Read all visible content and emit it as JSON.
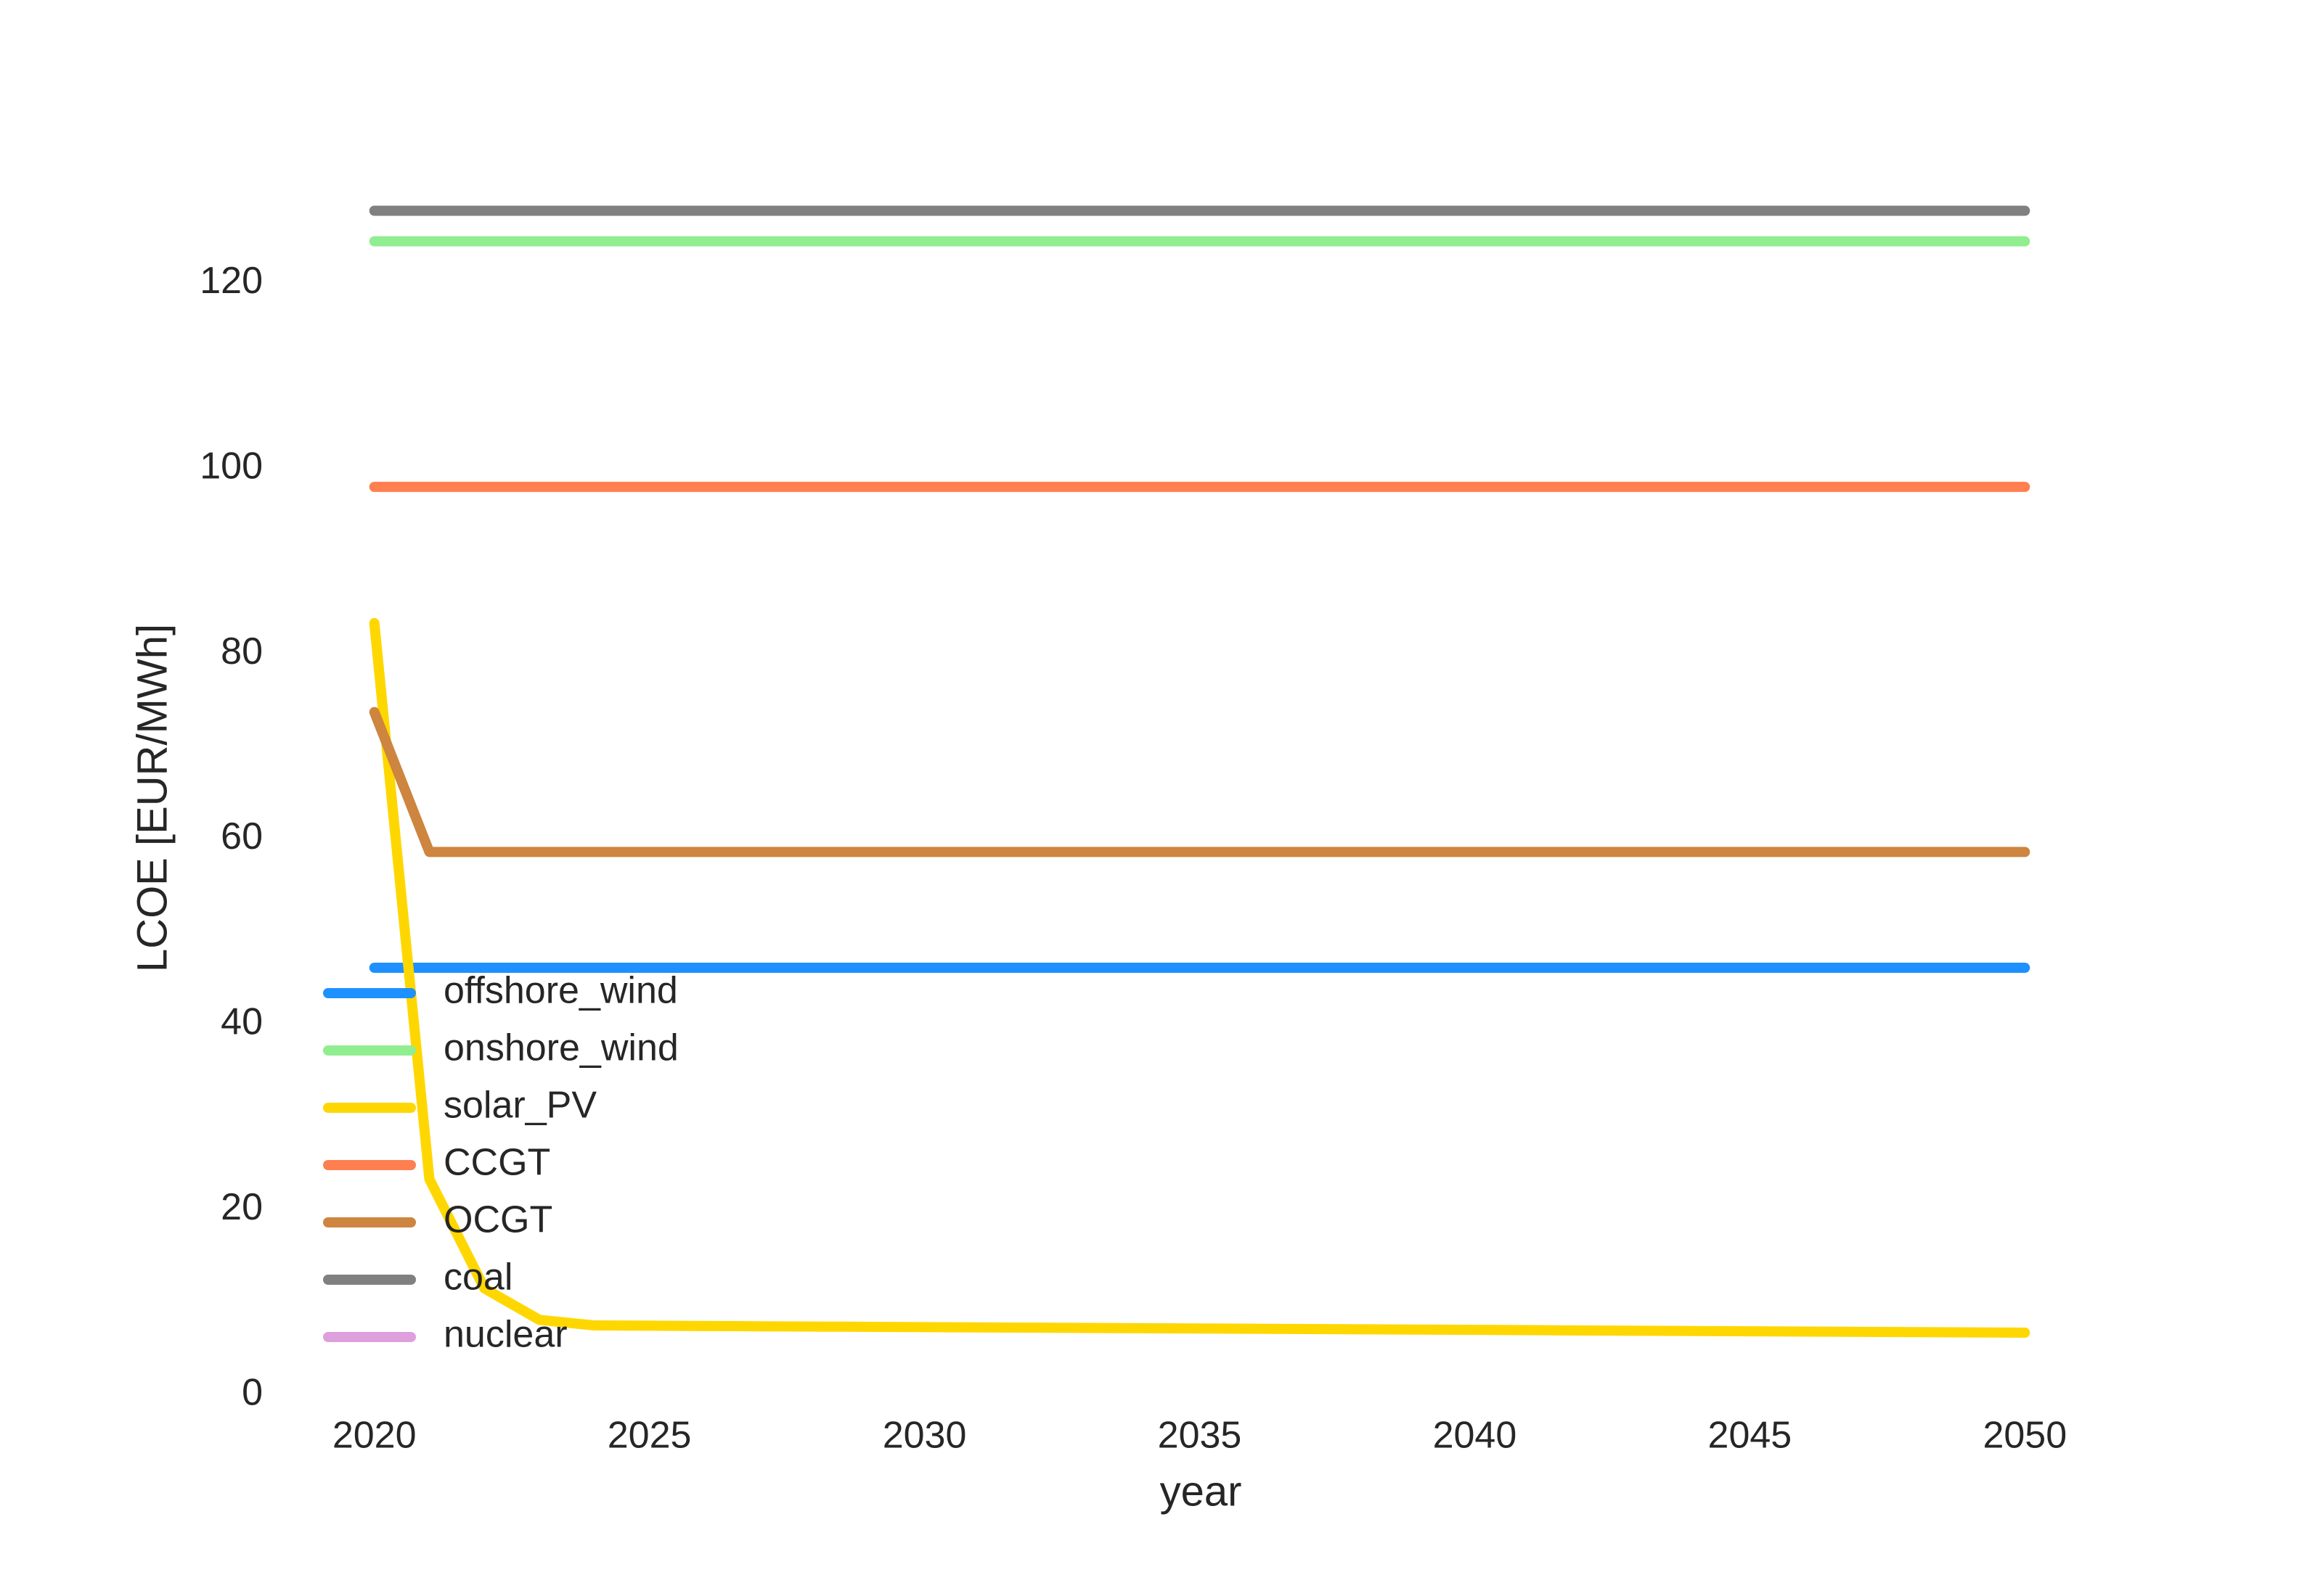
{
  "chart_data": {
    "type": "line",
    "xlabel": "year",
    "ylabel": "LCOE [EUR/MWh]",
    "x": [
      2020,
      2021,
      2022,
      2023,
      2024,
      2025,
      2026,
      2027,
      2028,
      2029,
      2030,
      2031,
      2032,
      2033,
      2034,
      2035,
      2036,
      2037,
      2038,
      2039,
      2040,
      2041,
      2042,
      2043,
      2044,
      2045,
      2046,
      2047,
      2048,
      2049,
      2050
    ],
    "xlim": [
      2018.5,
      2051.5
    ],
    "xticks": [
      2020,
      2025,
      2030,
      2035,
      2040,
      2045,
      2050
    ],
    "ylim": [
      -1.5,
      137
    ],
    "yticks": [
      0,
      20,
      40,
      60,
      80,
      100,
      120
    ],
    "grid": false,
    "legend": "lower left",
    "series": [
      {
        "name": "offshore_wind",
        "color": "#1e90ff",
        "values": [
          46.1,
          46.1,
          46.1,
          46.1,
          46.1,
          46.1,
          46.1,
          46.1,
          46.1,
          46.1,
          46.1,
          46.1,
          46.1,
          46.1,
          46.1,
          46.1,
          46.1,
          46.1,
          46.1,
          46.1,
          46.1,
          46.1,
          46.1,
          46.1,
          46.1,
          46.1,
          46.1,
          46.1,
          46.1,
          46.1,
          46.1
        ]
      },
      {
        "name": "onshore_wind",
        "color": "#90ee90",
        "values": [
          124.5,
          124.5,
          124.5,
          124.5,
          124.5,
          124.5,
          124.5,
          124.5,
          124.5,
          124.5,
          124.5,
          124.5,
          124.5,
          124.5,
          124.5,
          124.5,
          124.5,
          124.5,
          124.5,
          124.5,
          124.5,
          124.5,
          124.5,
          124.5,
          124.5,
          124.5,
          124.5,
          124.5,
          124.5,
          124.5,
          124.5
        ]
      },
      {
        "name": "solar_PV",
        "color": "#ffd700",
        "values": [
          83.3,
          23.3,
          11.5,
          8.1,
          7.5,
          7.47,
          7.44,
          7.41,
          7.38,
          7.35,
          7.32,
          7.29,
          7.26,
          7.23,
          7.2,
          7.17,
          7.14,
          7.11,
          7.08,
          7.05,
          7.02,
          6.99,
          6.96,
          6.93,
          6.9,
          6.87,
          6.84,
          6.81,
          6.78,
          6.75,
          6.72
        ]
      },
      {
        "name": "CCGT",
        "color": "#ff7f50",
        "values": [
          98,
          98,
          98,
          98,
          98,
          98,
          98,
          98,
          98,
          98,
          98,
          98,
          98,
          98,
          98,
          98,
          98,
          98,
          98,
          98,
          98,
          98,
          98,
          98,
          98,
          98,
          98,
          98,
          98,
          98,
          98
        ]
      },
      {
        "name": "OCGT",
        "color": "#cd853f",
        "values": [
          73.7,
          58.6,
          58.6,
          58.6,
          58.6,
          58.6,
          58.6,
          58.6,
          58.6,
          58.6,
          58.6,
          58.6,
          58.6,
          58.6,
          58.6,
          58.6,
          58.6,
          58.6,
          58.6,
          58.6,
          58.6,
          58.6,
          58.6,
          58.6,
          58.6,
          58.6,
          58.6,
          58.6,
          58.6,
          58.6,
          58.6
        ]
      },
      {
        "name": "coal",
        "color": "#808080",
        "values": [
          127.8,
          127.8,
          127.8,
          127.8,
          127.8,
          127.8,
          127.8,
          127.8,
          127.8,
          127.8,
          127.8,
          127.8,
          127.8,
          127.8,
          127.8,
          127.8,
          127.8,
          127.8,
          127.8,
          127.8,
          127.8,
          127.8,
          127.8,
          127.8,
          127.8,
          127.8,
          127.8,
          127.8,
          127.8,
          127.8,
          127.8
        ]
      },
      {
        "name": "nuclear",
        "color": "#dda0dd",
        "values": [
          null,
          null,
          null,
          null,
          null,
          null,
          null,
          null,
          null,
          null,
          null,
          null,
          null,
          null,
          null,
          null,
          null,
          null,
          null,
          null,
          null,
          null,
          null,
          null,
          null,
          null,
          null,
          null,
          null,
          null,
          null
        ]
      }
    ]
  }
}
